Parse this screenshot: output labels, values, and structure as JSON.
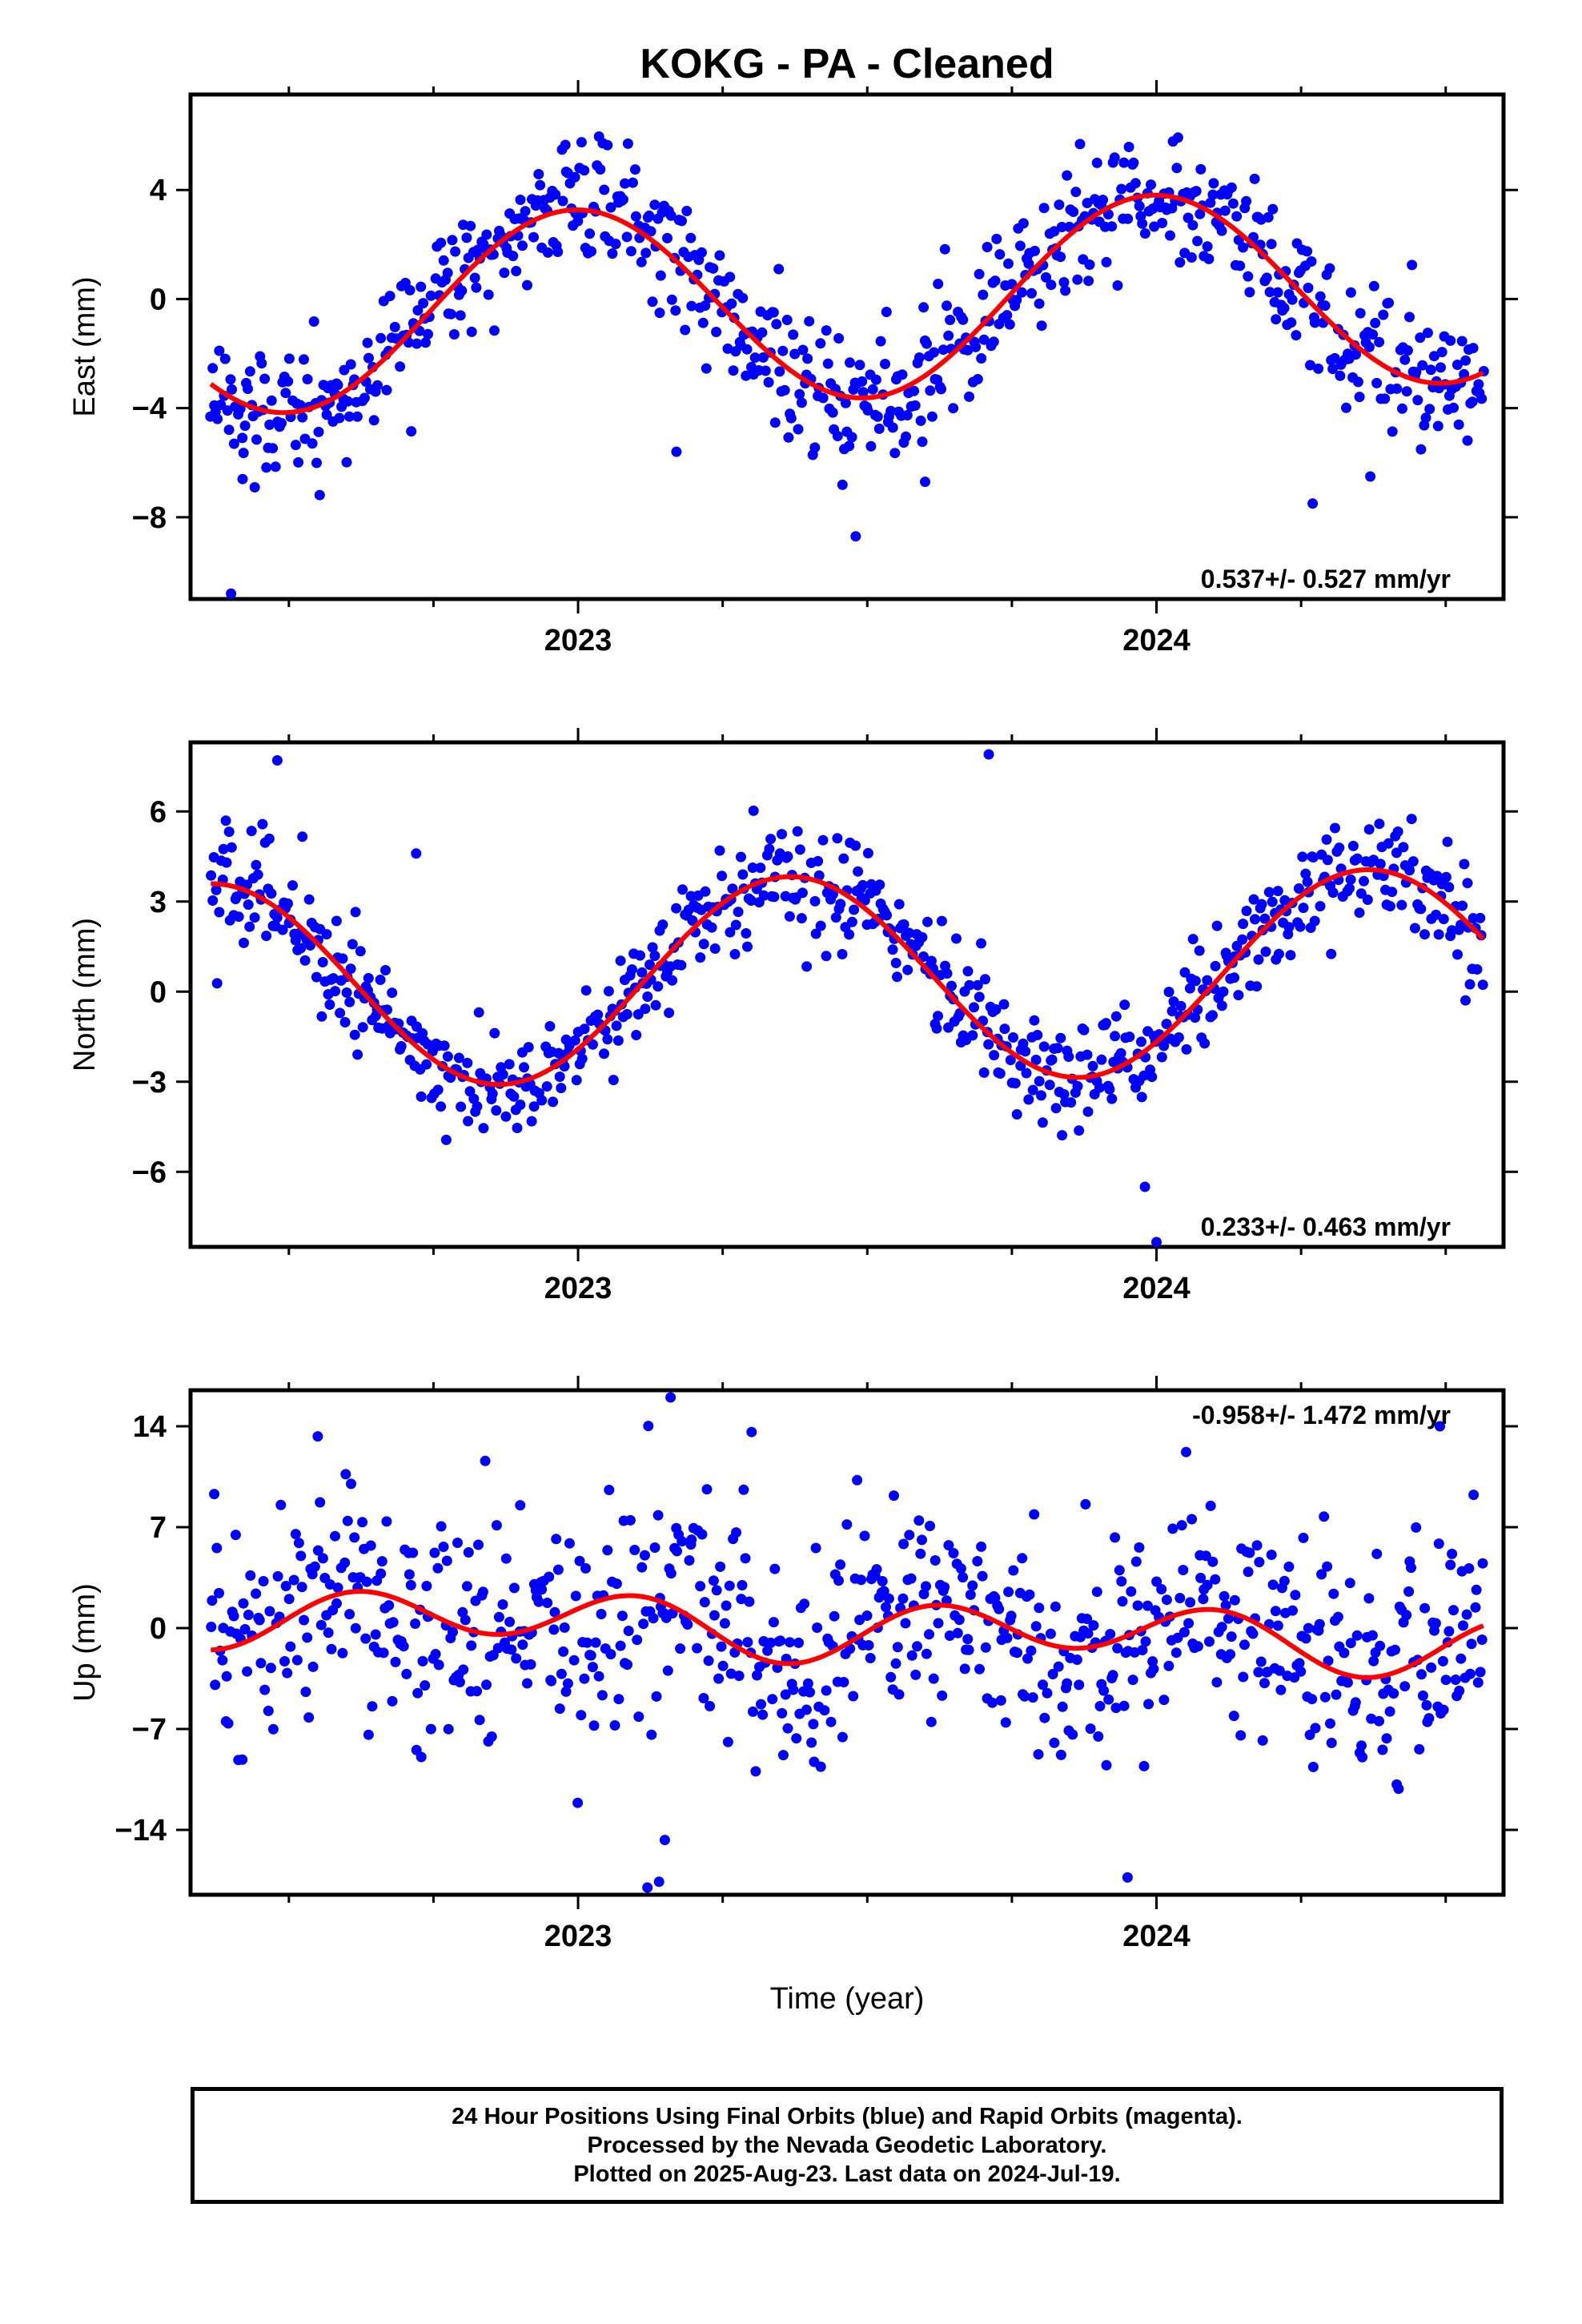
{
  "title": "KOKG  - PA - Cleaned",
  "xlabel": "Time (year)",
  "footer": {
    "line1": "24 Hour Positions Using Final Orbits (blue) and Rapid Orbits (magenta).",
    "line2": "Processed by the Nevada Geodetic Laboratory.",
    "line3": "Plotted on 2025-Aug-23. Last data on 2024-Jul-19."
  },
  "colors": {
    "observations": "#0000ff",
    "model_fit": "#ff0000",
    "frame": "#000000"
  },
  "chart_data": [
    {
      "type": "scatter",
      "ylabel": "East (mm)",
      "xlim": [
        2022.33,
        2024.6
      ],
      "ylim": [
        -11,
        7.5
      ],
      "x_ticks": [
        2023,
        2024
      ],
      "y_ticks": [
        4,
        0,
        -4,
        -8
      ],
      "rate_text": "0.537+/- 0.527 mm/yr",
      "rate_position": "bottom-right",
      "model": {
        "offset": -0.06,
        "rate": 0.537,
        "sin": -0.13,
        "cos": 3.58,
        "sin2": 0,
        "cos2": 0
      },
      "scatter_sd": 1.2,
      "outliers": [
        [
          2022.4,
          -10.8
        ],
        [
          2022.42,
          -6.6
        ],
        [
          2023.48,
          -8.7
        ],
        [
          2023.17,
          -5.6
        ],
        [
          2023.6,
          -6.7
        ],
        [
          2024.27,
          -7.5
        ]
      ]
    },
    {
      "type": "scatter",
      "ylabel": "North (mm)",
      "xlim": [
        2022.33,
        2024.6
      ],
      "ylim": [
        -8.5,
        8.3
      ],
      "x_ticks": [
        2023,
        2024
      ],
      "y_ticks": [
        6,
        3,
        0,
        -3,
        -6
      ],
      "rate_text": "0.233+/- 0.463 mm/yr",
      "rate_position": "bottom-right",
      "model": {
        "offset": 0.45,
        "rate": 0.233,
        "sin": 2.55,
        "cos": -2.25,
        "sin2": 0,
        "cos2": 0
      },
      "scatter_sd": 0.95,
      "outliers": [
        [
          2022.48,
          7.7
        ],
        [
          2023.71,
          7.9
        ],
        [
          2023.98,
          -6.5
        ],
        [
          2024.0,
          -8.4
        ],
        [
          2022.72,
          4.6
        ]
      ]
    },
    {
      "type": "scatter",
      "ylabel": "Up (mm)",
      "xlim": [
        2022.33,
        2024.6
      ],
      "ylim": [
        -18.5,
        16.5
      ],
      "x_ticks": [
        2023,
        2024
      ],
      "y_ticks": [
        14,
        7,
        0,
        -7,
        -14
      ],
      "rate_text": "-0.958+/- 1.472 mm/yr",
      "rate_position": "top-right",
      "model": {
        "offset": -0.01,
        "rate": -0.958,
        "sin": -0.55,
        "cos": 0.55,
        "sin2": 1.75,
        "cos2": 0.35
      },
      "scatter_sd": 4.0,
      "outliers": [
        [
          2023.16,
          16.0
        ],
        [
          2023.12,
          -18.0
        ],
        [
          2023.14,
          -17.6
        ],
        [
          2023.15,
          -14.7
        ],
        [
          2024.49,
          14.0
        ],
        [
          2023.95,
          -17.3
        ],
        [
          2022.55,
          13.3
        ],
        [
          2023.3,
          13.6
        ]
      ]
    }
  ]
}
